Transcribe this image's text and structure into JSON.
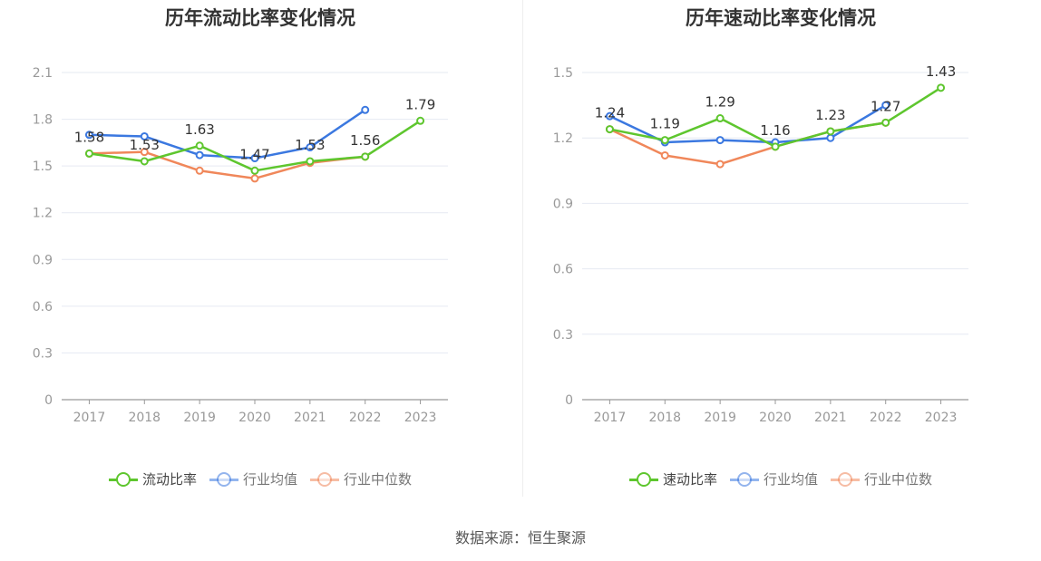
{
  "source_text": "数据来源：恒生聚源",
  "chart_data": [
    {
      "type": "line",
      "title": "历年流动比率变化情况",
      "categories": [
        "2017",
        "2018",
        "2019",
        "2020",
        "2021",
        "2022",
        "2023"
      ],
      "ylim": [
        0,
        2.1
      ],
      "yticks": [
        "0",
        "0.3",
        "0.6",
        "0.9",
        "1.2",
        "1.5",
        "1.8",
        "2.1"
      ],
      "grid": true,
      "legend_position": "bottom",
      "series": [
        {
          "name": "流动比率",
          "color": "#5ec62e",
          "values": [
            1.58,
            1.53,
            1.63,
            1.47,
            1.53,
            1.56,
            1.79
          ],
          "labels": [
            "1.58",
            "1.53",
            "1.63",
            "1.47",
            "1.53",
            "1.56",
            "1.79"
          ]
        },
        {
          "name": "行业均值",
          "color": "#3b78e0",
          "values": [
            1.7,
            1.69,
            1.57,
            1.55,
            1.62,
            1.86,
            null
          ]
        },
        {
          "name": "行业中位数",
          "color": "#f0875a",
          "values": [
            1.58,
            1.59,
            1.47,
            1.42,
            1.52,
            1.56,
            null
          ]
        }
      ]
    },
    {
      "type": "line",
      "title": "历年速动比率变化情况",
      "categories": [
        "2017",
        "2018",
        "2019",
        "2020",
        "2021",
        "2022",
        "2023"
      ],
      "ylim": [
        0,
        1.5
      ],
      "yticks": [
        "0",
        "0.3",
        "0.6",
        "0.9",
        "1.2",
        "1.5"
      ],
      "grid": true,
      "legend_position": "bottom",
      "series": [
        {
          "name": "速动比率",
          "color": "#5ec62e",
          "values": [
            1.24,
            1.19,
            1.29,
            1.16,
            1.23,
            1.27,
            1.43
          ],
          "labels": [
            "1.24",
            "1.19",
            "1.29",
            "1.16",
            "1.23",
            "1.27",
            "1.43"
          ]
        },
        {
          "name": "行业均值",
          "color": "#3b78e0",
          "values": [
            1.3,
            1.18,
            1.19,
            1.18,
            1.2,
            1.35,
            null
          ]
        },
        {
          "name": "行业中位数",
          "color": "#f0875a",
          "values": [
            1.24,
            1.12,
            1.08,
            1.16,
            1.23,
            1.27,
            null
          ]
        }
      ]
    }
  ]
}
